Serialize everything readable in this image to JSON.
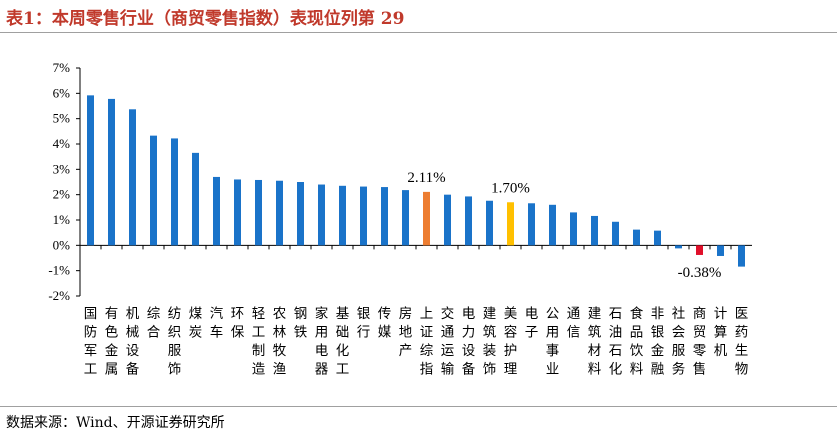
{
  "title": "表1：本周零售行业（商贸零售指数）表现位列第 29",
  "source": "数据来源：Wind、开源证券研究所",
  "colors": {
    "default": "#1a73c9",
    "highlight_orange": "#ed7d31",
    "highlight_yellow": "#ffc000",
    "highlight_red": "#e0102a"
  },
  "chart_data": {
    "type": "bar",
    "ylim": [
      -2,
      7
    ],
    "yticks": [
      -2,
      -1,
      0,
      1,
      2,
      3,
      4,
      5,
      6,
      7
    ],
    "ytick_labels": [
      "-2%",
      "-1%",
      "0%",
      "1%",
      "2%",
      "3%",
      "4%",
      "5%",
      "6%",
      "7%"
    ],
    "categories": [
      "国防军工",
      "有色金属",
      "机械设备",
      "综合",
      "纺织服饰",
      "煤炭",
      "汽车",
      "环保",
      "轻工制造",
      "农林牧渔",
      "钢铁",
      "家用电器",
      "基础化工",
      "银行",
      "传媒",
      "房地产",
      "上证综指",
      "交通运输",
      "电力设备",
      "建筑装饰",
      "美容护理",
      "电子",
      "公用事业",
      "通信",
      "建筑材料",
      "石油石化",
      "食品饮料",
      "非银金融",
      "社会服务",
      "商贸零售",
      "计算机",
      "医药生物"
    ],
    "values": [
      5.92,
      5.78,
      5.37,
      4.33,
      4.22,
      3.65,
      2.7,
      2.6,
      2.58,
      2.55,
      2.5,
      2.4,
      2.35,
      2.32,
      2.3,
      2.18,
      2.11,
      2.0,
      1.93,
      1.76,
      1.7,
      1.66,
      1.6,
      1.3,
      1.16,
      0.93,
      0.62,
      0.58,
      -0.12,
      -0.38,
      -0.42,
      -0.84
    ],
    "highlights": {
      "上证综指": "highlight_orange",
      "美容护理": "highlight_yellow",
      "商贸零售": "highlight_red"
    },
    "data_labels": [
      {
        "category": "上证综指",
        "text": "2.11%"
      },
      {
        "category": "美容护理",
        "text": "1.70%"
      },
      {
        "category": "商贸零售",
        "text": "-0.38%"
      }
    ]
  }
}
